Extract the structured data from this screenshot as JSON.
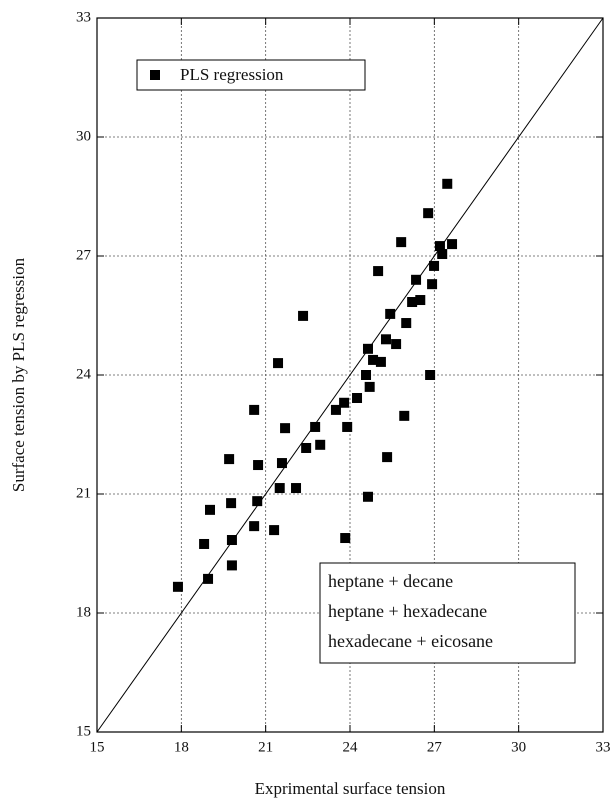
{
  "chart_data": {
    "type": "scatter",
    "x_label": "Exprimental surface tension",
    "y_label": "Surface tension by PLS regression",
    "xlim": [
      15,
      33
    ],
    "ylim": [
      15,
      33
    ],
    "xticks": [
      15,
      18,
      21,
      24,
      27,
      30,
      33
    ],
    "yticks": [
      15,
      18,
      21,
      24,
      27,
      30,
      33
    ],
    "grid": true,
    "legend_position": "upper left",
    "notes": [
      "heptane + decane",
      "heptane + hexadecane",
      "hexadecane + eicosane"
    ],
    "series": [
      {
        "name": "PLS regression",
        "color": "#000000",
        "x": [
          17.88,
          18.81,
          18.95,
          19.02,
          19.7,
          19.77,
          19.8,
          19.8,
          20.59,
          20.59,
          20.7,
          20.73,
          21.3,
          21.44,
          21.5,
          21.58,
          21.69,
          22.08,
          22.33,
          22.44,
          22.76,
          22.94,
          23.5,
          23.79,
          23.83,
          23.9,
          24.25,
          24.57,
          24.64,
          24.64,
          24.7,
          24.82,
          25.0,
          25.1,
          25.28,
          25.32,
          25.43,
          25.64,
          25.82,
          25.93,
          26.0,
          26.21,
          26.35,
          26.5,
          26.78,
          26.85,
          26.92,
          26.99,
          27.2,
          27.28,
          27.46,
          27.63
        ],
        "values": [
          18.66,
          19.74,
          18.86,
          20.6,
          21.88,
          20.77,
          19.84,
          19.2,
          23.12,
          20.19,
          20.82,
          21.73,
          20.09,
          24.3,
          21.15,
          21.78,
          22.66,
          21.15,
          25.49,
          22.16,
          22.69,
          22.24,
          23.12,
          23.3,
          19.89,
          22.69,
          23.42,
          24.0,
          24.66,
          20.93,
          23.7,
          24.38,
          26.62,
          24.33,
          24.9,
          21.93,
          25.54,
          24.78,
          27.35,
          22.97,
          25.31,
          25.84,
          26.4,
          25.89,
          28.08,
          24.0,
          26.29,
          26.75,
          27.25,
          27.05,
          28.82,
          27.3
        ]
      }
    ]
  }
}
